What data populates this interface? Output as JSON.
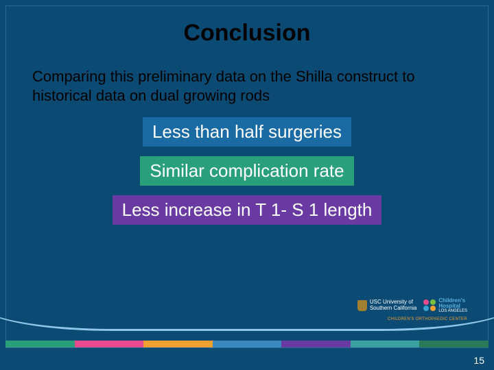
{
  "title": "Conclusion",
  "subtitle": "Comparing this preliminary data on the Shilla construct to historical data on dual growing rods",
  "boxes": {
    "b1": {
      "text": "Less than half surgeries",
      "bg": "#1a6aa3"
    },
    "b2": {
      "text": "Similar complication rate",
      "bg": "#2aa07a"
    },
    "b3": {
      "text": "Less increase in T 1- S 1 length",
      "bg": "#6a3aa3"
    }
  },
  "page_number": "15",
  "stripe_colors": [
    "#2aa07a",
    "#e84a8f",
    "#f0a030",
    "#3a8ac0",
    "#6a3aa3",
    "#3aa0a0",
    "#2a7a5a"
  ],
  "logos": {
    "usc": {
      "line1": "USC University of",
      "line2": "Southern California"
    },
    "chla": {
      "line1": "Children's",
      "line2": "Hospital",
      "line3": "LOS ANGELES",
      "sub": "CHILDREN'S ORTHOPAEDIC CENTER"
    }
  },
  "background_color": "#0a4a73",
  "arc_color": "#8fc7e8"
}
